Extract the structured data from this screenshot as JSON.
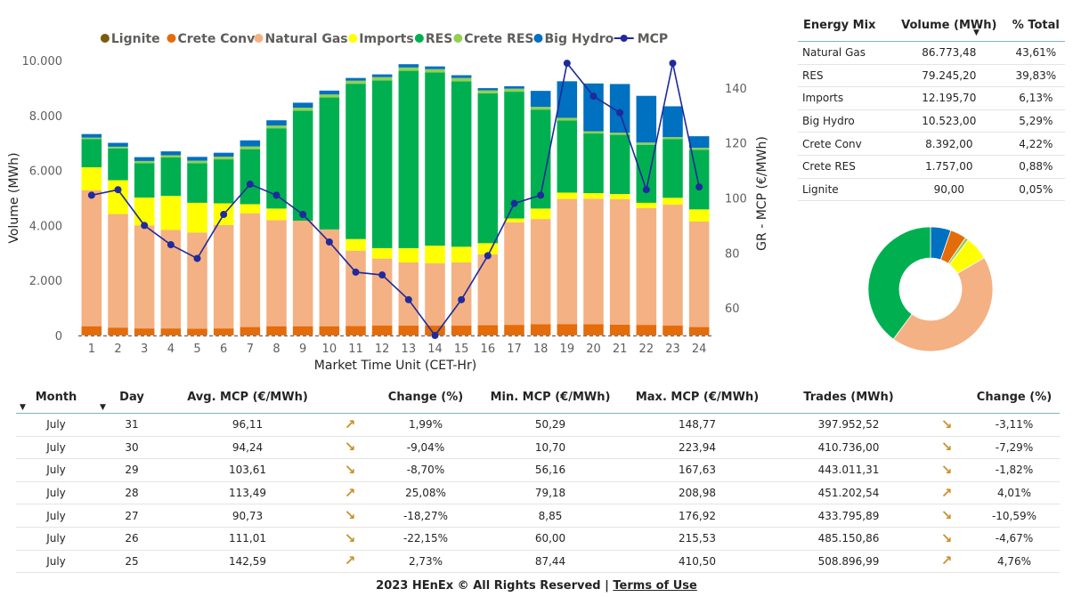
{
  "chart_data": [
    {
      "type": "bar",
      "stacked": true,
      "xlabel": "Market Time Unit (CET-Hr)",
      "ylabel": "Volume (MWh)",
      "y2label": "GR - MCP (€/MWh)",
      "ylim": [
        0,
        10000
      ],
      "y2lim": [
        50,
        150
      ],
      "yticks": [
        "0",
        "2.000",
        "4.000",
        "6.000",
        "8.000",
        "10.000"
      ],
      "y2ticks": [
        "60",
        "80",
        "100",
        "120",
        "140"
      ],
      "legend_position": "top",
      "categories": [
        "1",
        "2",
        "3",
        "4",
        "5",
        "6",
        "7",
        "8",
        "9",
        "10",
        "11",
        "12",
        "13",
        "14",
        "15",
        "16",
        "17",
        "18",
        "19",
        "20",
        "21",
        "22",
        "23",
        "24"
      ],
      "series": [
        {
          "name": "Lignite",
          "color": "#7a5c0e",
          "values": [
            5,
            5,
            5,
            5,
            5,
            5,
            5,
            5,
            5,
            5,
            5,
            5,
            5,
            5,
            5,
            5,
            5,
            5,
            5,
            5,
            5,
            5,
            5,
            5
          ]
        },
        {
          "name": "Crete Conv",
          "color": "#e46c0a",
          "values": [
            330,
            280,
            250,
            250,
            240,
            250,
            300,
            330,
            330,
            330,
            340,
            360,
            350,
            350,
            350,
            370,
            380,
            400,
            410,
            400,
            390,
            380,
            360,
            300
          ]
        },
        {
          "name": "Natural Gas",
          "color": "#f4b183",
          "values": [
            4940,
            4130,
            3750,
            3580,
            3500,
            3760,
            4140,
            3860,
            3840,
            3520,
            2740,
            2430,
            2300,
            2270,
            2300,
            2570,
            3730,
            3830,
            4550,
            4570,
            4560,
            4250,
            4390,
            3840
          ]
        },
        {
          "name": "Imports",
          "color": "#ffff00",
          "values": [
            840,
            1230,
            1010,
            1240,
            1080,
            790,
            330,
            420,
            0,
            0,
            420,
            380,
            520,
            640,
            570,
            410,
            140,
            380,
            230,
            200,
            190,
            190,
            250,
            440
          ]
        },
        {
          "name": "RES",
          "color": "#00b050",
          "values": [
            1030,
            1160,
            1250,
            1400,
            1440,
            1600,
            2000,
            2920,
            4000,
            4800,
            5650,
            6100,
            6450,
            6300,
            6020,
            5450,
            4610,
            3600,
            2620,
            2170,
            2150,
            2110,
            2140,
            2170
          ]
        },
        {
          "name": "Crete RES",
          "color": "#92d050",
          "values": [
            50,
            60,
            80,
            80,
            90,
            100,
            100,
            100,
            110,
            110,
            110,
            120,
            120,
            120,
            120,
            110,
            110,
            100,
            100,
            80,
            80,
            80,
            70,
            70
          ]
        },
        {
          "name": "Big Hydro",
          "color": "#0070c0",
          "values": [
            130,
            140,
            140,
            140,
            140,
            140,
            220,
            190,
            180,
            140,
            100,
            100,
            120,
            100,
            100,
            80,
            90,
            580,
            1330,
            1740,
            1770,
            1700,
            1120,
            420
          ]
        }
      ],
      "line": {
        "name": "MCP",
        "color": "#1f2a9c",
        "axis": "y2",
        "values": [
          101,
          103,
          90,
          83,
          78,
          94,
          105,
          101,
          94,
          84,
          73,
          72,
          63,
          50,
          63,
          79,
          98,
          101,
          149,
          137,
          131,
          103,
          149,
          104
        ]
      }
    },
    {
      "type": "pie",
      "donut": true,
      "labels": [
        "Natural Gas",
        "RES",
        "Imports",
        "Big Hydro",
        "Crete Conv",
        "Crete RES",
        "Lignite"
      ],
      "values": [
        43.61,
        39.83,
        6.13,
        5.29,
        4.22,
        0.88,
        0.05
      ],
      "colors": [
        "#f4b183",
        "#00b050",
        "#ffff00",
        "#0070c0",
        "#e46c0a",
        "#92d050",
        "#7a5c0e"
      ]
    }
  ],
  "mix_table": {
    "headers": [
      "Energy Mix",
      "Volume (MWh)",
      "% Total"
    ],
    "rows": [
      [
        "Natural Gas",
        "86.773,48",
        "43,61%"
      ],
      [
        "RES",
        "79.245,20",
        "39,83%"
      ],
      [
        "Imports",
        "12.195,70",
        "6,13%"
      ],
      [
        "Big Hydro",
        "10.523,00",
        "5,29%"
      ],
      [
        "Crete Conv",
        "8.392,00",
        "4,22%"
      ],
      [
        "Crete RES",
        "1.757,00",
        "0,88%"
      ],
      [
        "Lignite",
        "90,00",
        "0,05%"
      ]
    ]
  },
  "daily_table": {
    "headers": [
      "Month",
      "Day",
      "Avg. MCP (€/MWh)",
      "",
      "Change (%)",
      "Min. MCP (€/MWh)",
      "Max. MCP (€/MWh)",
      "Trades (MWh)",
      "",
      "Change (%)"
    ],
    "rows": [
      {
        "month": "July",
        "day": "31",
        "avg": "96,11",
        "avg_trend": "up",
        "avg_change": "1,99%",
        "min": "50,29",
        "max": "148,77",
        "trades": "397.952,52",
        "trades_trend": "down",
        "trades_change": "-3,11%"
      },
      {
        "month": "July",
        "day": "30",
        "avg": "94,24",
        "avg_trend": "down",
        "avg_change": "-9,04%",
        "min": "10,70",
        "max": "223,94",
        "trades": "410.736,00",
        "trades_trend": "down",
        "trades_change": "-7,29%"
      },
      {
        "month": "July",
        "day": "29",
        "avg": "103,61",
        "avg_trend": "down",
        "avg_change": "-8,70%",
        "min": "56,16",
        "max": "167,63",
        "trades": "443.011,31",
        "trades_trend": "down",
        "trades_change": "-1,82%"
      },
      {
        "month": "July",
        "day": "28",
        "avg": "113,49",
        "avg_trend": "up",
        "avg_change": "25,08%",
        "min": "79,18",
        "max": "208,98",
        "trades": "451.202,54",
        "trades_trend": "up",
        "trades_change": "4,01%"
      },
      {
        "month": "July",
        "day": "27",
        "avg": "90,73",
        "avg_trend": "down",
        "avg_change": "-18,27%",
        "min": "8,85",
        "max": "176,92",
        "trades": "433.795,89",
        "trades_trend": "down",
        "trades_change": "-10,59%"
      },
      {
        "month": "July",
        "day": "26",
        "avg": "111,01",
        "avg_trend": "down",
        "avg_change": "-22,15%",
        "min": "60,00",
        "max": "215,53",
        "trades": "485.150,86",
        "trades_trend": "down",
        "trades_change": "-4,67%"
      },
      {
        "month": "July",
        "day": "25",
        "avg": "142,59",
        "avg_trend": "up",
        "avg_change": "2,73%",
        "min": "87,44",
        "max": "410,50",
        "trades": "508.896,99",
        "trades_trend": "up",
        "trades_change": "4,76%"
      }
    ]
  },
  "icons": {
    "up": "arrow-up-right-icon",
    "down": "arrow-down-right-icon",
    "sort": "sort-desc-icon"
  },
  "footer": {
    "copyright": "2023 HEnEx © All Rights Reserved | ",
    "terms": "Terms of Use"
  }
}
